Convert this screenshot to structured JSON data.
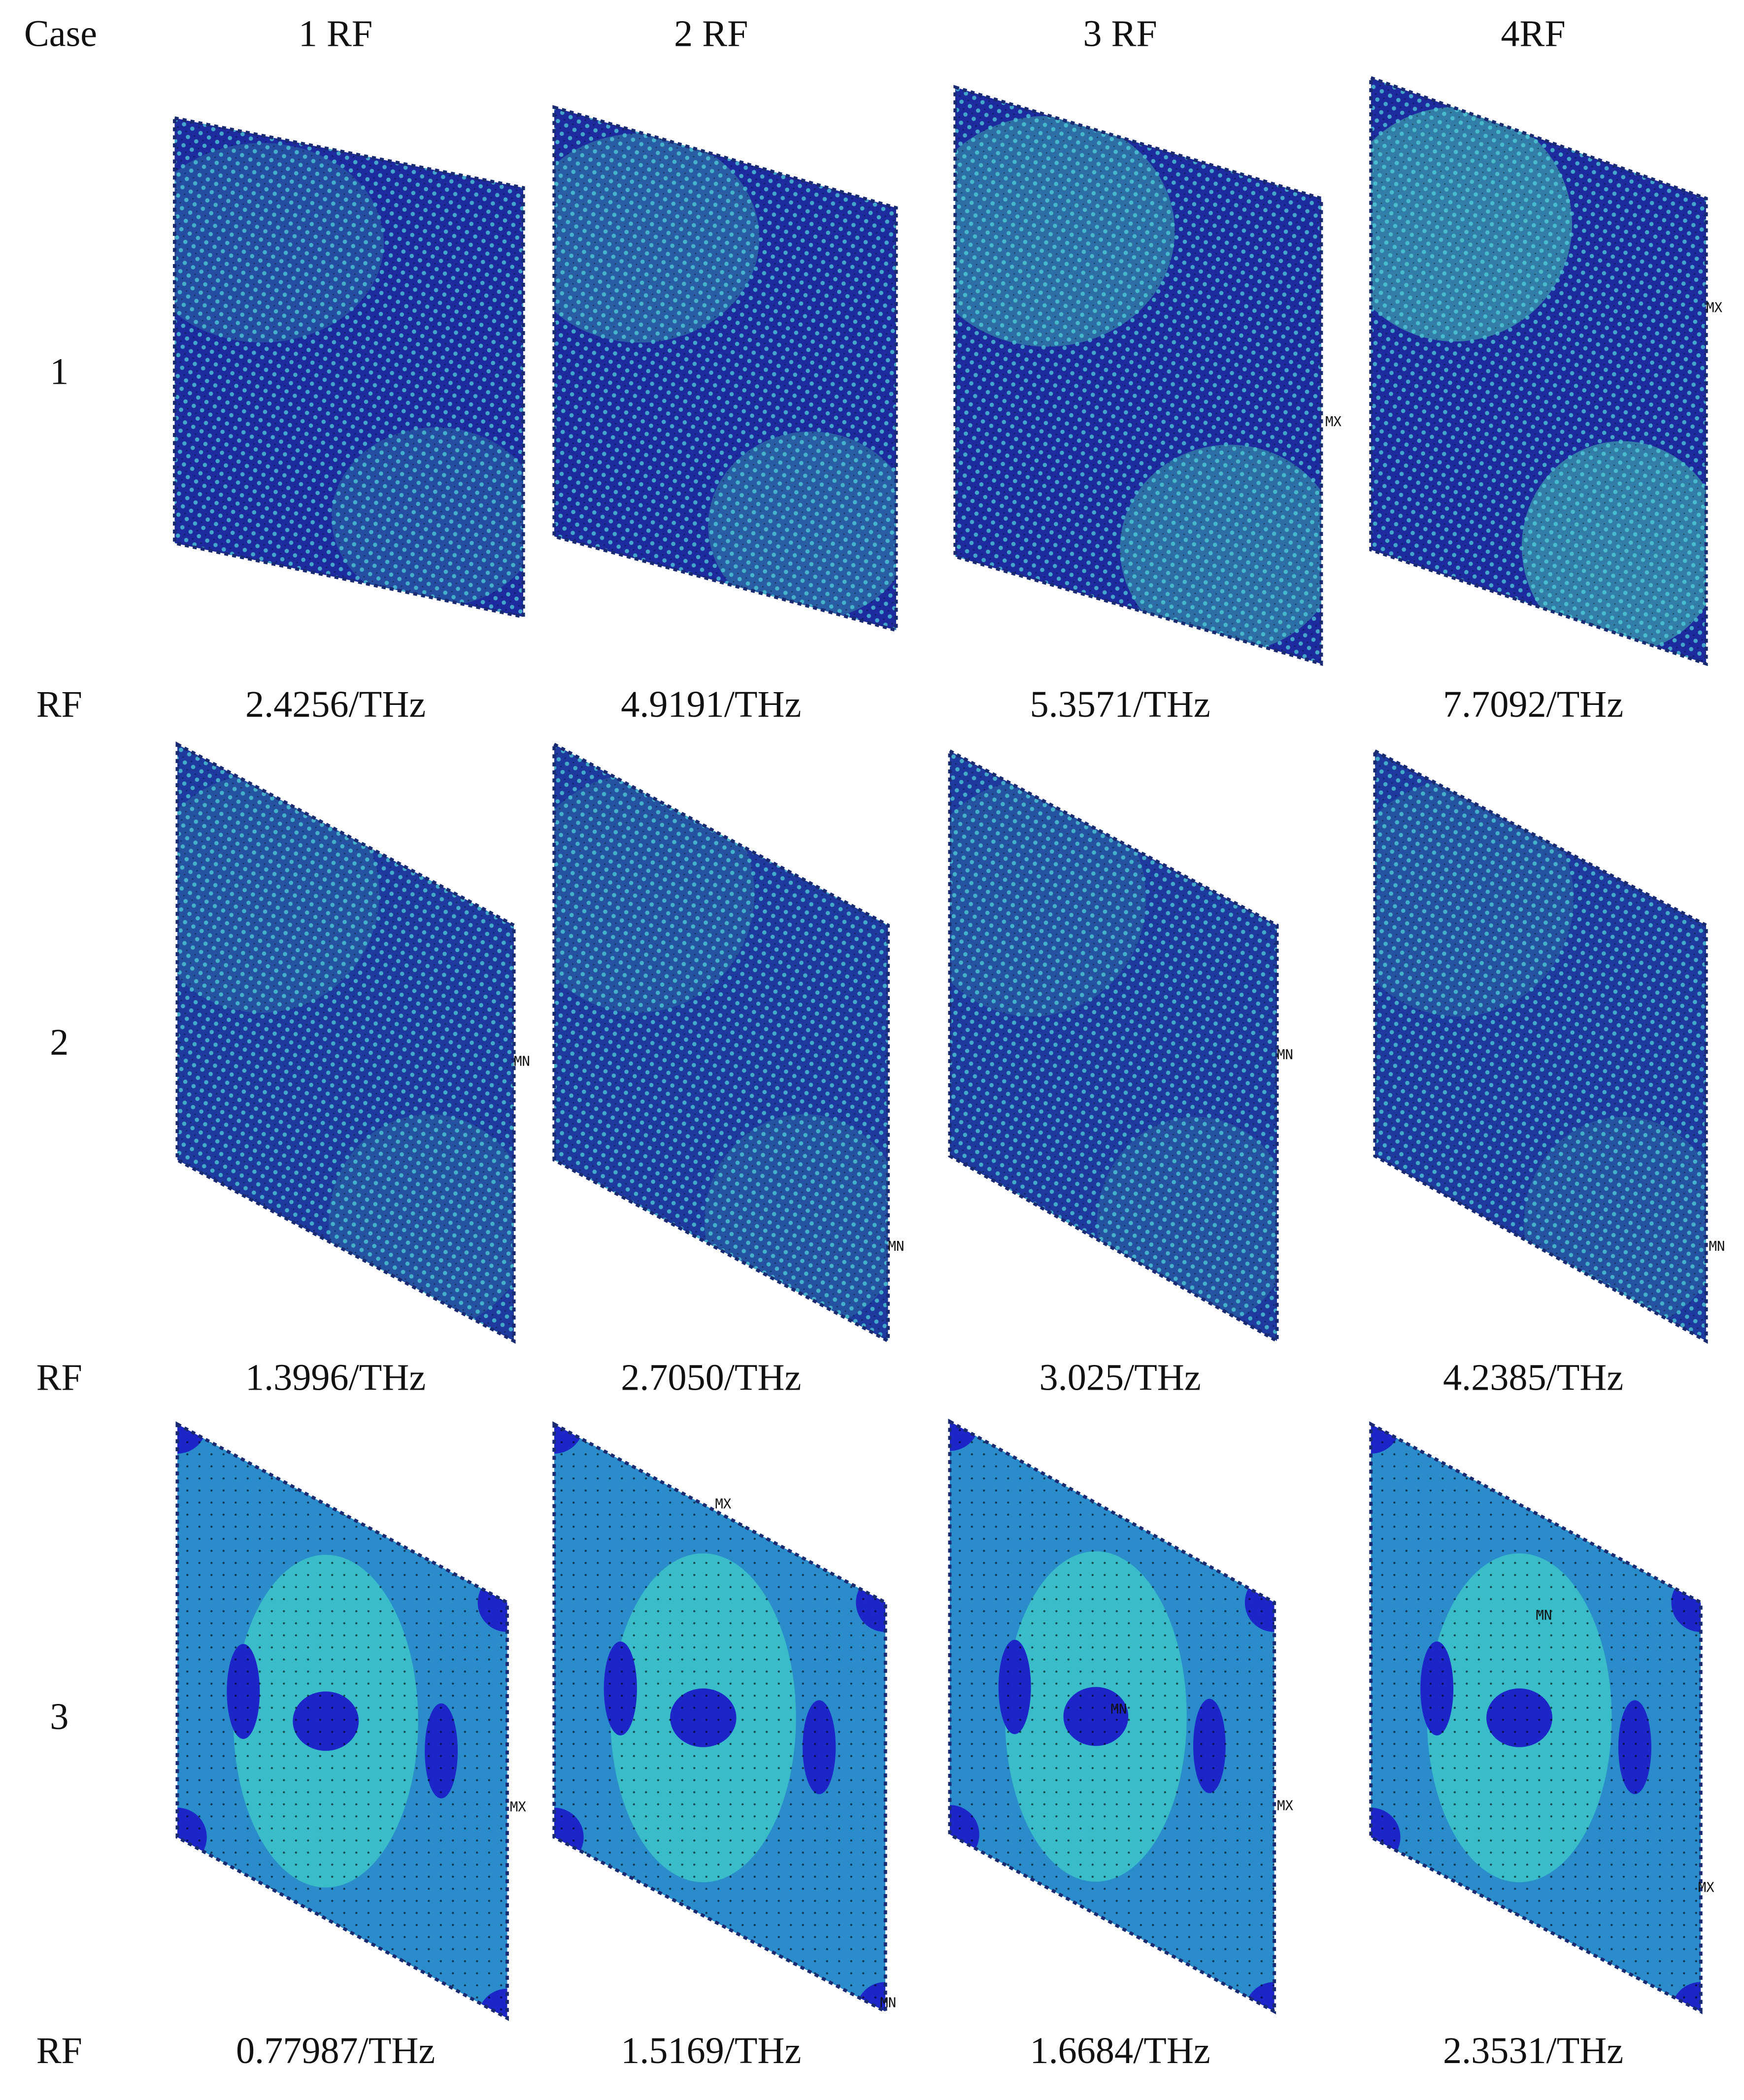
{
  "header": {
    "case": "Case",
    "columns": [
      "1 RF",
      "2 RF",
      "3 RF",
      "4RF"
    ]
  },
  "rows": [
    {
      "case": "1",
      "rf_label": "RF",
      "frequencies": [
        "2.4256/THz",
        "4.9191/THz",
        "5.3571/THz",
        "7.7092/THz"
      ],
      "panels": [
        {
          "markers": []
        },
        {
          "markers": []
        },
        {
          "markers": [
            "MX"
          ]
        },
        {
          "markers": [
            "MX"
          ]
        }
      ]
    },
    {
      "case": "2",
      "rf_label": "RF",
      "frequencies": [
        "1.3996/THz",
        "2.7050/THz",
        "3.025/THz",
        "4.2385/THz"
      ],
      "panels": [
        {
          "markers": [
            "MN"
          ]
        },
        {
          "markers": [
            "MN"
          ]
        },
        {
          "markers": [
            "MN"
          ]
        },
        {
          "markers": [
            "MN"
          ]
        }
      ]
    },
    {
      "case": "3",
      "rf_label": "RF",
      "frequencies": [
        "0.77987/THz",
        "1.5169/THz",
        "1.6684/THz",
        "2.3531/THz"
      ],
      "panels": [
        {
          "markers": [
            "MX"
          ]
        },
        {
          "markers": [
            "MX",
            "MN"
          ]
        },
        {
          "markers": [
            "MN",
            "MX"
          ]
        },
        {
          "markers": [
            "MN",
            "MX"
          ]
        }
      ]
    }
  ]
}
